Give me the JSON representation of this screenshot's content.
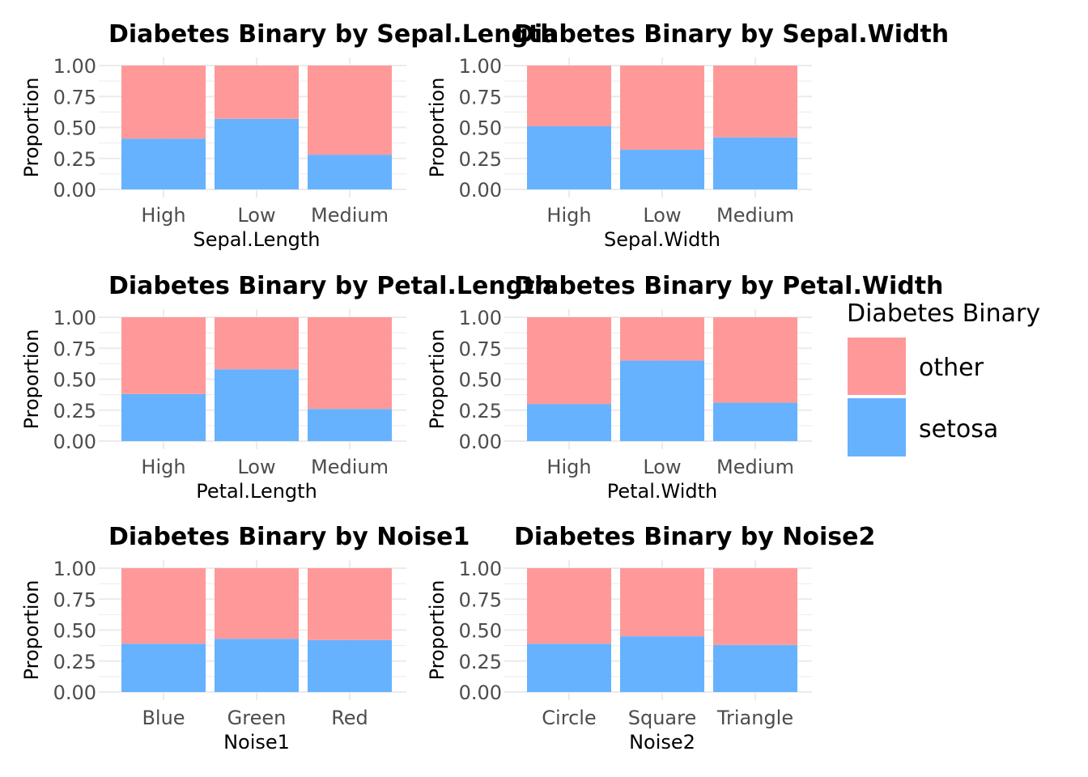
{
  "legend": {
    "title": "Diabetes Binary",
    "items": [
      {
        "label": "other",
        "color": "#FF9999"
      },
      {
        "label": "setosa",
        "color": "#66B2FF"
      }
    ]
  },
  "chart_data": [
    {
      "type": "bar",
      "stacked": true,
      "title": "Diabetes Binary by Sepal.Length",
      "xlabel": "Sepal.Length",
      "ylabel": "Proportion",
      "ylim": [
        0,
        1
      ],
      "yticks": [
        "0.00",
        "0.25",
        "0.50",
        "0.75",
        "1.00"
      ],
      "categories": [
        "High",
        "Low",
        "Medium"
      ],
      "series": [
        {
          "name": "setosa",
          "values": [
            0.41,
            0.57,
            0.28
          ]
        },
        {
          "name": "other",
          "values": [
            0.59,
            0.43,
            0.72
          ]
        }
      ]
    },
    {
      "type": "bar",
      "stacked": true,
      "title": "Diabetes Binary by Sepal.Width",
      "xlabel": "Sepal.Width",
      "ylabel": "Proportion",
      "ylim": [
        0,
        1
      ],
      "yticks": [
        "0.00",
        "0.25",
        "0.50",
        "0.75",
        "1.00"
      ],
      "categories": [
        "High",
        "Low",
        "Medium"
      ],
      "series": [
        {
          "name": "setosa",
          "values": [
            0.51,
            0.32,
            0.42
          ]
        },
        {
          "name": "other",
          "values": [
            0.49,
            0.68,
            0.58
          ]
        }
      ]
    },
    {
      "type": "bar",
      "stacked": true,
      "title": "Diabetes Binary by Petal.Length",
      "xlabel": "Petal.Length",
      "ylabel": "Proportion",
      "ylim": [
        0,
        1
      ],
      "yticks": [
        "0.00",
        "0.25",
        "0.50",
        "0.75",
        "1.00"
      ],
      "categories": [
        "High",
        "Low",
        "Medium"
      ],
      "series": [
        {
          "name": "setosa",
          "values": [
            0.38,
            0.58,
            0.26
          ]
        },
        {
          "name": "other",
          "values": [
            0.62,
            0.42,
            0.74
          ]
        }
      ]
    },
    {
      "type": "bar",
      "stacked": true,
      "title": "Diabetes Binary by Petal.Width",
      "xlabel": "Petal.Width",
      "ylabel": "Proportion",
      "ylim": [
        0,
        1
      ],
      "yticks": [
        "0.00",
        "0.25",
        "0.50",
        "0.75",
        "1.00"
      ],
      "categories": [
        "High",
        "Low",
        "Medium"
      ],
      "series": [
        {
          "name": "setosa",
          "values": [
            0.3,
            0.65,
            0.31
          ]
        },
        {
          "name": "other",
          "values": [
            0.7,
            0.35,
            0.69
          ]
        }
      ]
    },
    {
      "type": "bar",
      "stacked": true,
      "title": "Diabetes Binary by Noise1",
      "xlabel": "Noise1",
      "ylabel": "Proportion",
      "ylim": [
        0,
        1
      ],
      "yticks": [
        "0.00",
        "0.25",
        "0.50",
        "0.75",
        "1.00"
      ],
      "categories": [
        "Blue",
        "Green",
        "Red"
      ],
      "series": [
        {
          "name": "setosa",
          "values": [
            0.39,
            0.43,
            0.42
          ]
        },
        {
          "name": "other",
          "values": [
            0.61,
            0.57,
            0.58
          ]
        }
      ]
    },
    {
      "type": "bar",
      "stacked": true,
      "title": "Diabetes Binary by Noise2",
      "xlabel": "Noise2",
      "ylabel": "Proportion",
      "ylim": [
        0,
        1
      ],
      "yticks": [
        "0.00",
        "0.25",
        "0.50",
        "0.75",
        "1.00"
      ],
      "categories": [
        "Circle",
        "Square",
        "Triangle"
      ],
      "series": [
        {
          "name": "setosa",
          "values": [
            0.39,
            0.45,
            0.38
          ]
        },
        {
          "name": "other",
          "values": [
            0.61,
            0.55,
            0.62
          ]
        }
      ]
    }
  ]
}
